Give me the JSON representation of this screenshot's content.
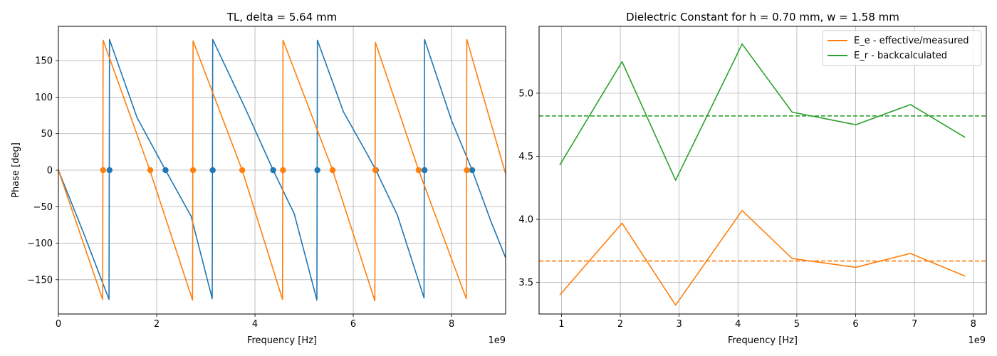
{
  "chart_data": [
    {
      "type": "line",
      "title": "TL, delta = 5.64 mm",
      "xlabel": "Frequency [Hz]",
      "ylabel": "Phase [deg]",
      "x_offset_text": "1e9",
      "xlim": [
        0,
        9.1
      ],
      "ylim": [
        -197,
        197
      ],
      "xticks": [
        0,
        2,
        4,
        6,
        8
      ],
      "xtick_labels": [
        "0",
        "2",
        "4",
        "6",
        "8"
      ],
      "yticks": [
        -150,
        -100,
        -50,
        0,
        50,
        100,
        150
      ],
      "ytick_labels": [
        "−150",
        "−100",
        "−50",
        "0",
        "50",
        "100",
        "150"
      ],
      "grid": true,
      "series": [
        {
          "color": "#1f77b4",
          "line": [
            [
              0,
              0
            ],
            [
              0.5,
              -84
            ],
            [
              1.03,
              -177
            ],
            [
              1.04,
              179
            ],
            [
              1.6,
              72
            ],
            [
              2.18,
              0
            ],
            [
              2.7,
              -63
            ],
            [
              3.13,
              -176
            ],
            [
              3.14,
              179
            ],
            [
              3.8,
              85
            ],
            [
              4.37,
              0
            ],
            [
              4.8,
              -60
            ],
            [
              5.26,
              -178
            ],
            [
              5.27,
              178
            ],
            [
              5.8,
              80
            ],
            [
              6.3,
              20
            ],
            [
              6.46,
              0
            ],
            [
              6.9,
              -62
            ],
            [
              7.44,
              -175
            ],
            [
              7.45,
              179
            ],
            [
              8.0,
              68
            ],
            [
              8.42,
              0
            ],
            [
              8.8,
              -70
            ],
            [
              9.1,
              -120
            ]
          ],
          "zero_crossings": [
            1.04,
            2.18,
            3.14,
            4.37,
            5.27,
            6.46,
            7.45,
            8.42
          ]
        },
        {
          "color": "#ff7f0e",
          "line": [
            [
              0,
              0
            ],
            [
              0.9,
              -177
            ],
            [
              0.91,
              178
            ],
            [
              1.86,
              0
            ],
            [
              2.73,
              -178
            ],
            [
              2.74,
              177
            ],
            [
              3.74,
              0
            ],
            [
              4.56,
              -177
            ],
            [
              4.57,
              178
            ],
            [
              5.58,
              0
            ],
            [
              6.44,
              -179
            ],
            [
              6.45,
              175
            ],
            [
              7.33,
              0
            ],
            [
              8.3,
              -176
            ],
            [
              8.31,
              179
            ],
            [
              9.1,
              -5
            ]
          ],
          "zero_crossings": [
            0.91,
            1.87,
            2.74,
            3.74,
            4.57,
            5.58,
            6.45,
            7.33,
            8.31
          ]
        }
      ]
    },
    {
      "type": "line",
      "title": "Dielectric Constant for h = 0.70 mm, w = 1.58 mm",
      "xlabel": "Frequency [Hz]",
      "ylabel": "",
      "x_offset_text": "1e9",
      "xlim": [
        0.62,
        8.22
      ],
      "ylim": [
        3.25,
        5.53
      ],
      "xticks": [
        1,
        2,
        3,
        4,
        5,
        6,
        7,
        8
      ],
      "xtick_labels": [
        "1",
        "2",
        "3",
        "4",
        "5",
        "6",
        "7",
        "8"
      ],
      "yticks": [
        3.5,
        4.0,
        4.5,
        5.0
      ],
      "ytick_labels": [
        "3.5",
        "4.0",
        "4.5",
        "5.0"
      ],
      "grid": true,
      "legend": "top-right",
      "x": [
        0.97,
        2.03,
        2.94,
        4.07,
        4.92,
        6.0,
        6.93,
        7.86
      ],
      "series": [
        {
          "name": "E_e - effective/measured",
          "color": "#ff7f0e",
          "values": [
            3.4,
            3.97,
            3.32,
            4.07,
            3.69,
            3.62,
            3.73,
            3.55
          ],
          "mean": 3.67
        },
        {
          "name": "E_r - backcalculated",
          "color": "#2ca02c",
          "values": [
            4.43,
            5.25,
            4.31,
            5.39,
            4.85,
            4.75,
            4.91,
            4.65
          ],
          "mean": 4.82
        }
      ]
    }
  ]
}
